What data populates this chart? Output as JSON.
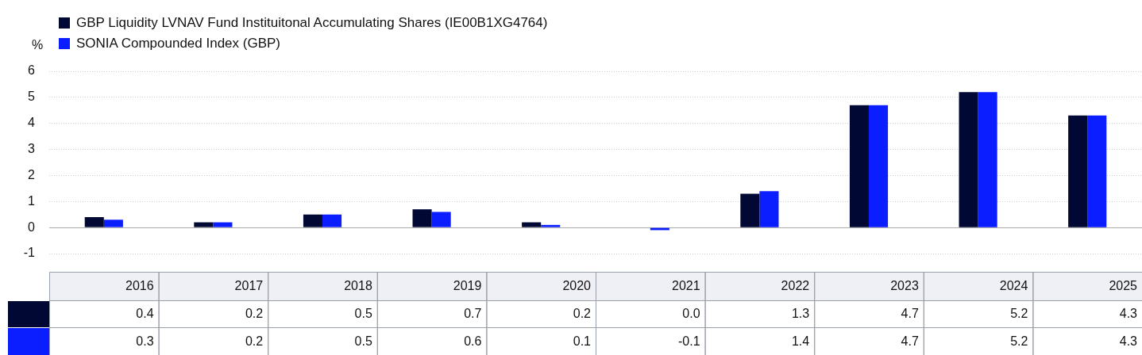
{
  "chart_data": {
    "type": "bar",
    "ylabel": "%",
    "categories": [
      "2016",
      "2017",
      "2018",
      "2019",
      "2020",
      "2021",
      "2022",
      "2023",
      "2024",
      "2025"
    ],
    "series": [
      {
        "name": "GBP Liquidity LVNAV Fund Instituitonal Accumulating Shares (IE00B1XG4764)",
        "color": "#000833",
        "values": [
          0.4,
          0.2,
          0.5,
          0.7,
          0.2,
          0.0,
          1.3,
          4.7,
          5.2,
          4.3
        ],
        "value_labels": [
          "0.4",
          "0.2",
          "0.5",
          "0.7",
          "0.2",
          "0.0",
          "1.3",
          "4.7",
          "5.2",
          "4.3"
        ]
      },
      {
        "name": "SONIA Compounded Index (GBP)",
        "color": "#0a1eff",
        "values": [
          0.3,
          0.2,
          0.5,
          0.6,
          0.1,
          -0.1,
          1.4,
          4.7,
          5.2,
          4.3
        ],
        "value_labels": [
          "0.3",
          "0.2",
          "0.5",
          "0.6",
          "0.1",
          "-0.1",
          "1.4",
          "4.7",
          "5.2",
          "4.3"
        ]
      }
    ],
    "ylim": [
      -1,
      6
    ],
    "yticks": [
      -1,
      0,
      1,
      2,
      3,
      4,
      5,
      6
    ],
    "grid": "y",
    "legend": "top left"
  }
}
